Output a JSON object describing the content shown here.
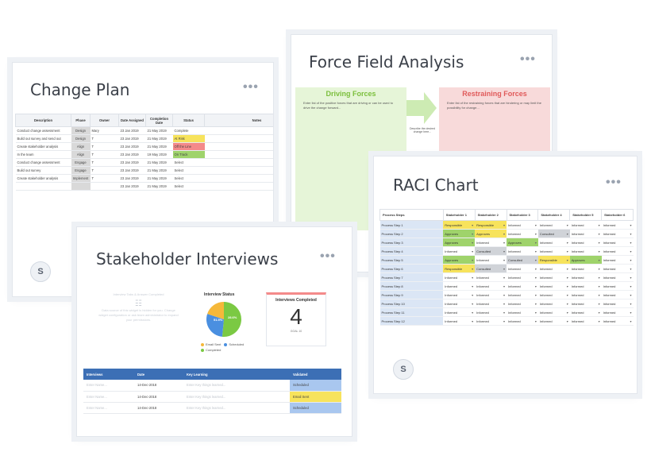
{
  "change_plan": {
    "title": "Change Plan",
    "avatar": "S",
    "columns": [
      "Description",
      "Phase",
      "Owner",
      "Date Assigned",
      "Completion Date",
      "Status",
      "Notes"
    ],
    "rows": [
      {
        "description": "Conduct change assessment",
        "phase": "Design",
        "owner": "Mary",
        "assigned": "23 Jan 2019",
        "completion": "21 May 2019",
        "status": "Complete",
        "status_class": "st-none"
      },
      {
        "description": "Build out survey and send out",
        "phase": "Design",
        "owner": "T",
        "assigned": "23 Jan 2019",
        "completion": "21 May 2019",
        "status": "At Risk",
        "status_class": "st-yellow"
      },
      {
        "description": "Create stakeholder analysis",
        "phase": "Align",
        "owner": "T",
        "assigned": "23 Jan 2019",
        "completion": "21 May 2019",
        "status": "Off the Line",
        "status_class": "st-red"
      },
      {
        "description": "In the team",
        "phase": "Align",
        "owner": "T",
        "assigned": "23 Jan 2019",
        "completion": "19 May 2019",
        "status": "On Track",
        "status_class": "st-green"
      },
      {
        "description": "Conduct change assessment",
        "phase": "Engage",
        "owner": "T",
        "assigned": "23 Jan 2019",
        "completion": "21 May 2019",
        "status": "Select",
        "status_class": "st-none"
      },
      {
        "description": "Build out survey",
        "phase": "Engage",
        "owner": "T",
        "assigned": "23 Jan 2019",
        "completion": "21 May 2019",
        "status": "Select",
        "status_class": "st-none"
      },
      {
        "description": "Create stakeholder analysis",
        "phase": "Implement",
        "owner": "T",
        "assigned": "23 Jan 2019",
        "completion": "21 May 2019",
        "status": "Select",
        "status_class": "st-none"
      },
      {
        "description": "",
        "phase": "",
        "owner": "",
        "assigned": "23 Jan 2019",
        "completion": "21 May 2019",
        "status": "Select",
        "status_class": "st-none"
      }
    ]
  },
  "force_field": {
    "title": "Force Field Analysis",
    "driving": {
      "heading": "Driving Forces",
      "text": "Enter list of the positive forces that are driving or can be used to drive the change forward..."
    },
    "restraining": {
      "heading": "Restraining Forces",
      "text": "Enter list of the restraining forces that are hindering or may limit the possibility for change..."
    },
    "center_text": "Describe the desired change here..."
  },
  "raci": {
    "title": "RACI Chart",
    "avatar": "S",
    "columns": [
      "Process Steps",
      "Stakeholder 1",
      "Stakeholder 2",
      "Stakeholder 3",
      "Stakeholder 4",
      "Stakeholder 5",
      "Stakeholder 6"
    ],
    "rows": [
      {
        "step": "Process Step 1",
        "cells": [
          [
            "Responsible",
            "r-yellow"
          ],
          [
            "Responsible",
            "r-yellow"
          ],
          [
            "Informed",
            "r-white"
          ],
          [
            "Informed",
            "r-white"
          ],
          [
            "Informed",
            "r-white"
          ],
          [
            "Informed",
            "r-white"
          ]
        ]
      },
      {
        "step": "Process Step 2",
        "cells": [
          [
            "Approves",
            "r-green"
          ],
          [
            "Approves",
            "r-yellow"
          ],
          [
            "Informed",
            "r-white"
          ],
          [
            "Consulted",
            "r-gray"
          ],
          [
            "Informed",
            "r-white"
          ],
          [
            "Informed",
            "r-white"
          ]
        ]
      },
      {
        "step": "Process Step 3",
        "cells": [
          [
            "Approves",
            "r-green"
          ],
          [
            "Informed",
            "r-white"
          ],
          [
            "Approves",
            "r-green"
          ],
          [
            "Informed",
            "r-white"
          ],
          [
            "Informed",
            "r-white"
          ],
          [
            "Informed",
            "r-white"
          ]
        ]
      },
      {
        "step": "Process Step 4",
        "cells": [
          [
            "Informed",
            "r-white"
          ],
          [
            "Consulted",
            "r-gray"
          ],
          [
            "Informed",
            "r-white"
          ],
          [
            "Informed",
            "r-white"
          ],
          [
            "Informed",
            "r-white"
          ],
          [
            "Informed",
            "r-white"
          ]
        ]
      },
      {
        "step": "Process Step 5",
        "cells": [
          [
            "Approves",
            "r-green"
          ],
          [
            "Informed",
            "r-white"
          ],
          [
            "Consulted",
            "r-gray"
          ],
          [
            "Responsible",
            "r-yellow"
          ],
          [
            "Approves",
            "r-green"
          ],
          [
            "Informed",
            "r-white"
          ]
        ]
      },
      {
        "step": "Process Step 6",
        "cells": [
          [
            "Responsible",
            "r-yellow"
          ],
          [
            "Consulted",
            "r-gray"
          ],
          [
            "Informed",
            "r-white"
          ],
          [
            "Informed",
            "r-white"
          ],
          [
            "Informed",
            "r-white"
          ],
          [
            "Informed",
            "r-white"
          ]
        ]
      },
      {
        "step": "Process Step 7",
        "cells": [
          [
            "Informed",
            "r-white"
          ],
          [
            "Informed",
            "r-white"
          ],
          [
            "Informed",
            "r-white"
          ],
          [
            "Informed",
            "r-white"
          ],
          [
            "Informed",
            "r-white"
          ],
          [
            "Informed",
            "r-white"
          ]
        ]
      },
      {
        "step": "Process Step 8",
        "cells": [
          [
            "Informed",
            "r-white"
          ],
          [
            "Informed",
            "r-white"
          ],
          [
            "Informed",
            "r-white"
          ],
          [
            "Informed",
            "r-white"
          ],
          [
            "Informed",
            "r-white"
          ],
          [
            "Informed",
            "r-white"
          ]
        ]
      },
      {
        "step": "Process Step 9",
        "cells": [
          [
            "Informed",
            "r-white"
          ],
          [
            "Informed",
            "r-white"
          ],
          [
            "Informed",
            "r-white"
          ],
          [
            "Informed",
            "r-white"
          ],
          [
            "Informed",
            "r-white"
          ],
          [
            "Informed",
            "r-white"
          ]
        ]
      },
      {
        "step": "Process Step 10",
        "cells": [
          [
            "Informed",
            "r-white"
          ],
          [
            "Informed",
            "r-white"
          ],
          [
            "Informed",
            "r-white"
          ],
          [
            "Informed",
            "r-white"
          ],
          [
            "Informed",
            "r-white"
          ],
          [
            "Informed",
            "r-white"
          ]
        ]
      },
      {
        "step": "Process Step 11",
        "cells": [
          [
            "Informed",
            "r-white"
          ],
          [
            "Informed",
            "r-white"
          ],
          [
            "Informed",
            "r-white"
          ],
          [
            "Informed",
            "r-white"
          ],
          [
            "Informed",
            "r-white"
          ],
          [
            "Informed",
            "r-white"
          ]
        ]
      },
      {
        "step": "Process Step 12",
        "cells": [
          [
            "Informed",
            "r-white"
          ],
          [
            "Informed",
            "r-white"
          ],
          [
            "Informed",
            "r-white"
          ],
          [
            "Informed",
            "r-white"
          ],
          [
            "Informed",
            "r-white"
          ],
          [
            "Informed",
            "r-white"
          ]
        ]
      }
    ]
  },
  "stakeholder": {
    "title": "Stakeholder Interviews",
    "avatar": "S",
    "placeholder_title": "Interview Tabs & Answer Completed",
    "placeholder_text": "Data source of this widget is hidden for you. Change widget configuration or ask team administrator to expand your permissions.",
    "status_title": "Interview Status",
    "legend": [
      {
        "label": "Email Sent",
        "color": "#f5b83a"
      },
      {
        "label": "Scheduled",
        "color": "#4a8fe0"
      },
      {
        "label": "Completed",
        "color": "#7bc943"
      }
    ],
    "pie": [
      {
        "label": "Completed",
        "value": 51.5,
        "color": "#7bc943"
      },
      {
        "label": "Scheduled",
        "value": 28.6,
        "color": "#4a8fe0"
      },
      {
        "label": "Email Sent",
        "value": 19.9,
        "color": "#f5b83a"
      }
    ],
    "pie_labels": [
      "51.5%",
      "28.6%"
    ],
    "completed_title": "Interviews Completed",
    "completed_value": "4",
    "goal_text": "GOAL 10",
    "columns": [
      "Interviews",
      "Date",
      "Key Learning",
      "Validated"
    ],
    "rows": [
      {
        "name": "Enter Name...",
        "date": "14-Dec-2018",
        "learning": "Enter Key things learned...",
        "validated": "Scheduled",
        "v_class": "v-blue"
      },
      {
        "name": "Enter Name...",
        "date": "14-Dec-2018",
        "learning": "Enter Key things learned...",
        "validated": "Email Sent",
        "v_class": "v-yellow"
      },
      {
        "name": "Enter Name...",
        "date": "14-Dec-2018",
        "learning": "Enter Key things learned...",
        "validated": "Scheduled",
        "v_class": "v-blue"
      }
    ]
  }
}
